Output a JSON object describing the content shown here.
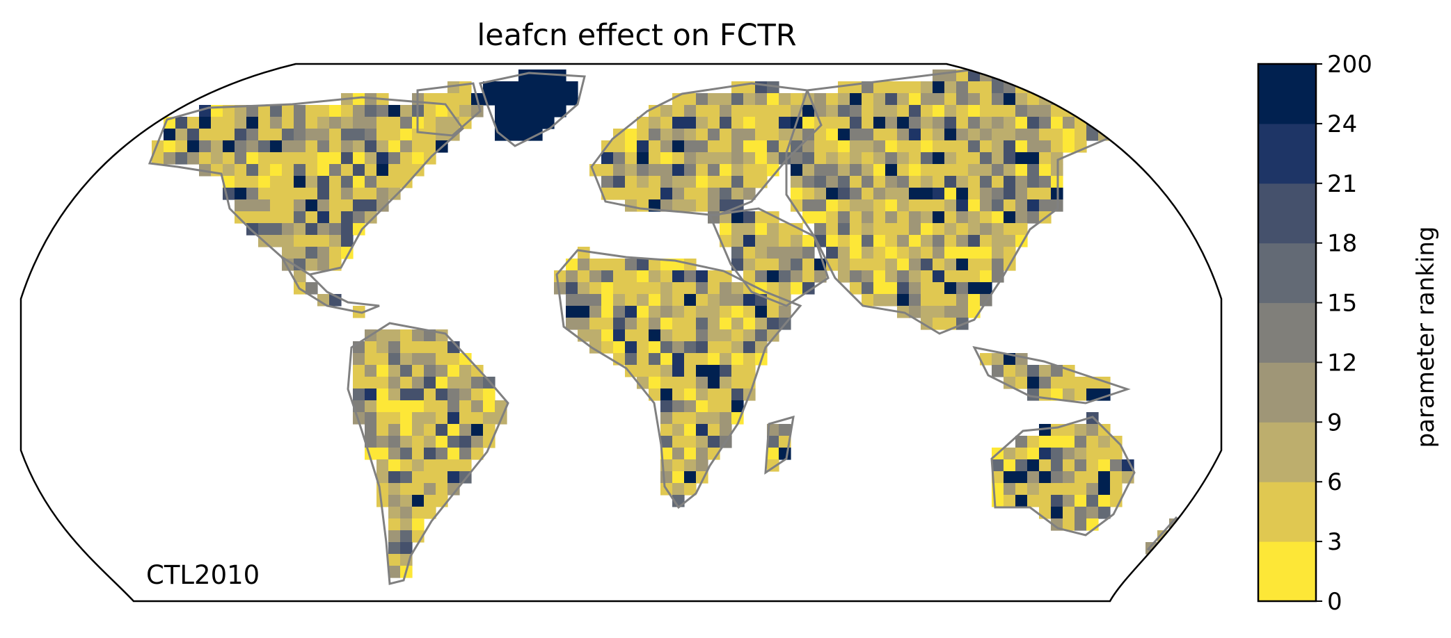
{
  "title": "leafcn effect on FCTR",
  "annotation": "CTL2010",
  "colorbar": {
    "label": "parameter ranking",
    "ticks": [
      "0",
      "3",
      "6",
      "9",
      "12",
      "15",
      "18",
      "21",
      "24",
      "200"
    ],
    "colors": [
      "#fde737",
      "#e0c851",
      "#bdae6d",
      "#9f9677",
      "#807f7a",
      "#636a75",
      "#45516c",
      "#1e3566",
      "#012150"
    ]
  },
  "map": {
    "projection": "Robinson",
    "land_outline_color": "#808080",
    "frame_color": "#000000"
  }
}
